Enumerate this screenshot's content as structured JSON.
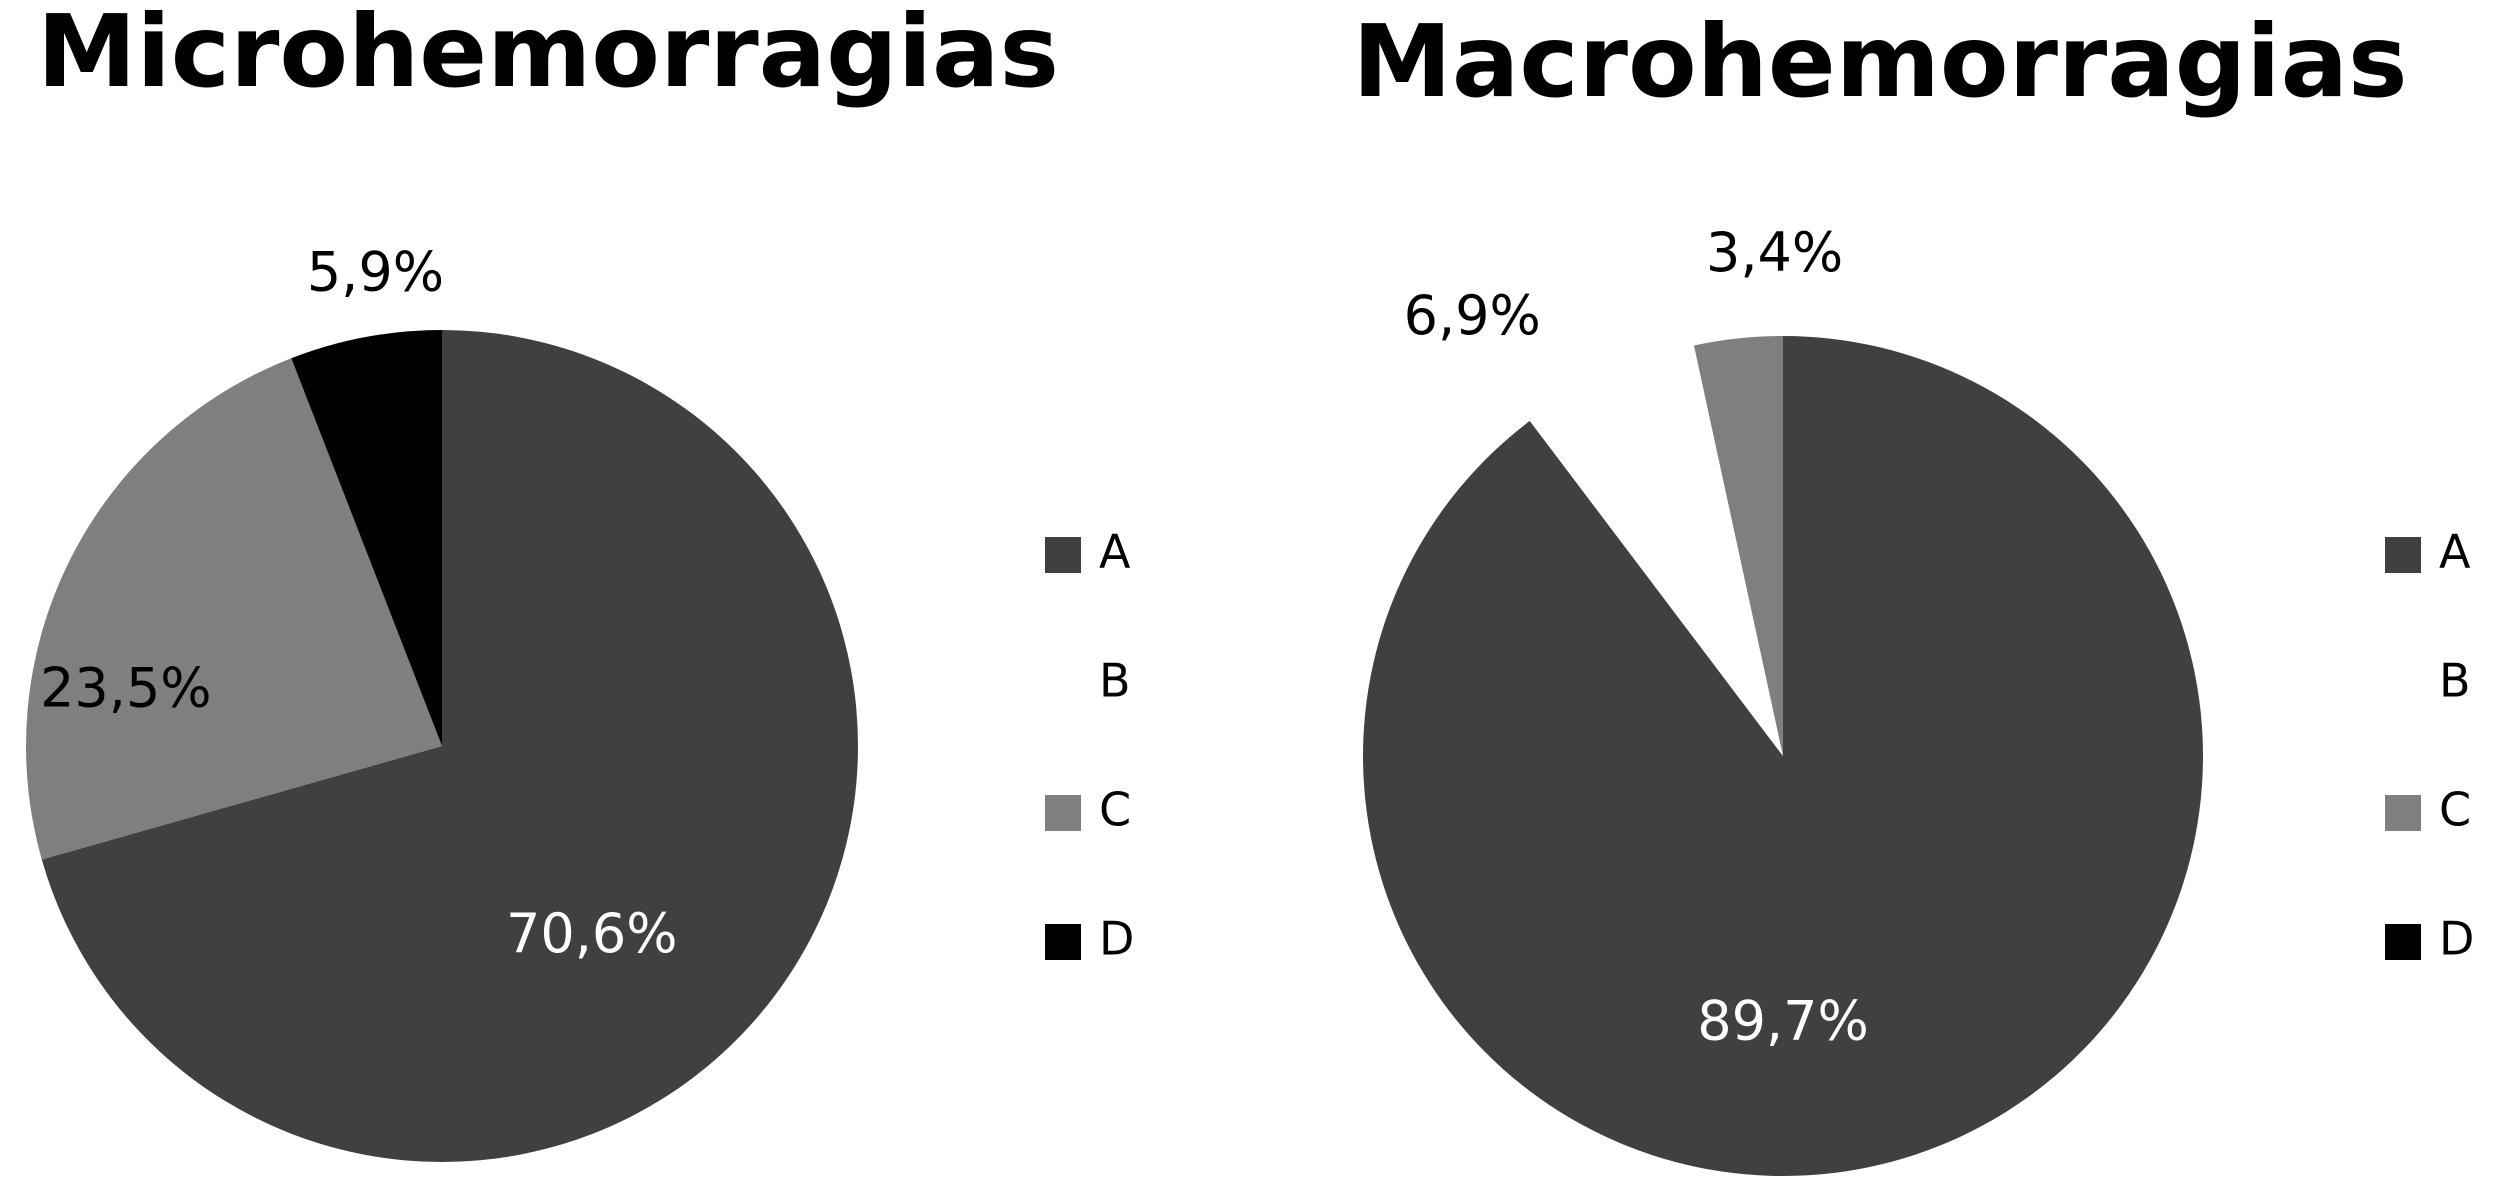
{
  "chart_data": [
    {
      "type": "pie",
      "title": "Microhemorragias",
      "slices": [
        {
          "category": "A",
          "value": 70.6,
          "label": "70,6%",
          "color": "#404040"
        },
        {
          "category": "B",
          "value": 0,
          "label": "",
          "color": "#ffffff"
        },
        {
          "category": "C",
          "value": 23.5,
          "label": "23,5%",
          "color": "#7f7f7f"
        },
        {
          "category": "D",
          "value": 5.9,
          "label": "5,9%",
          "color": "#000000"
        }
      ],
      "legend": [
        "A",
        "B",
        "C",
        "D"
      ],
      "legend_position": "right"
    },
    {
      "type": "pie",
      "title": "Macrohemorragias",
      "slices": [
        {
          "category": "A",
          "value": 89.7,
          "label": "89,7%",
          "color": "#404040"
        },
        {
          "category": "B",
          "value": 6.9,
          "label": "6,9%",
          "color": "#ffffff"
        },
        {
          "category": "C",
          "value": 3.4,
          "label": "3,4%",
          "color": "#7f7f7f"
        },
        {
          "category": "D",
          "value": 0,
          "label": "",
          "color": "#000000"
        }
      ],
      "legend": [
        "A",
        "B",
        "C",
        "D"
      ],
      "legend_position": "right"
    }
  ]
}
